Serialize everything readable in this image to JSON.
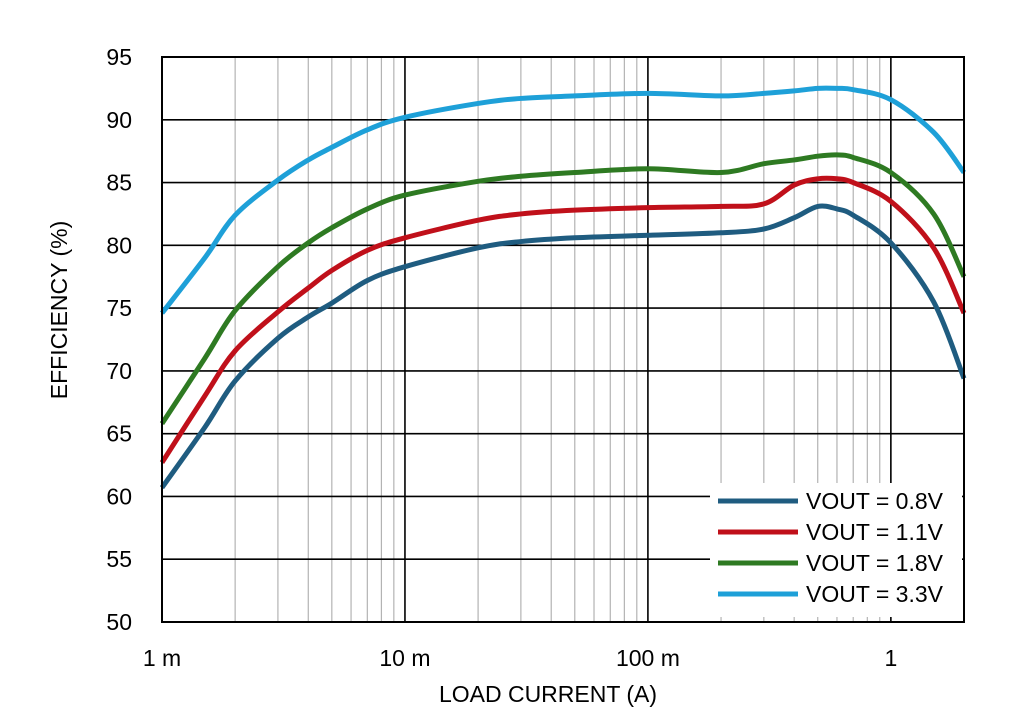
{
  "chart_data": {
    "type": "line",
    "xscale": "log",
    "xlabel": "LOAD CURRENT (A)",
    "ylabel": "EFFICIENCY (%)",
    "xlim": [
      0.001,
      2
    ],
    "ylim": [
      50,
      95
    ],
    "x_ticks": [
      {
        "value": 0.001,
        "label": "1 m"
      },
      {
        "value": 0.01,
        "label": "10 m"
      },
      {
        "value": 0.1,
        "label": "100 m"
      },
      {
        "value": 1,
        "label": "1"
      }
    ],
    "y_ticks": [
      50,
      55,
      60,
      65,
      70,
      75,
      80,
      85,
      90,
      95
    ],
    "grid": true,
    "legend_position": "bottom-right",
    "series": [
      {
        "name": "VOUT = 0.8V",
        "color": "#1F5C80",
        "points": [
          [
            0.001,
            60.7
          ],
          [
            0.0015,
            65.5
          ],
          [
            0.002,
            69.2
          ],
          [
            0.003,
            72.6
          ],
          [
            0.004,
            74.3
          ],
          [
            0.005,
            75.4
          ],
          [
            0.007,
            77.2
          ],
          [
            0.01,
            78.3
          ],
          [
            0.02,
            79.8
          ],
          [
            0.03,
            80.3
          ],
          [
            0.05,
            80.6
          ],
          [
            0.1,
            80.8
          ],
          [
            0.2,
            81.0
          ],
          [
            0.3,
            81.3
          ],
          [
            0.4,
            82.2
          ],
          [
            0.5,
            83.1
          ],
          [
            0.6,
            82.9
          ],
          [
            0.7,
            82.4
          ],
          [
            1.0,
            80.2
          ],
          [
            1.5,
            75.5
          ],
          [
            2.0,
            69.4
          ]
        ]
      },
      {
        "name": "VOUT = 1.1V",
        "color": "#C0101A",
        "points": [
          [
            0.001,
            62.7
          ],
          [
            0.0015,
            68.0
          ],
          [
            0.002,
            71.6
          ],
          [
            0.003,
            74.7
          ],
          [
            0.004,
            76.6
          ],
          [
            0.005,
            78.0
          ],
          [
            0.007,
            79.6
          ],
          [
            0.01,
            80.6
          ],
          [
            0.02,
            82.0
          ],
          [
            0.03,
            82.5
          ],
          [
            0.05,
            82.8
          ],
          [
            0.1,
            83.0
          ],
          [
            0.2,
            83.1
          ],
          [
            0.3,
            83.3
          ],
          [
            0.4,
            84.8
          ],
          [
            0.5,
            85.3
          ],
          [
            0.6,
            85.3
          ],
          [
            0.7,
            85.0
          ],
          [
            1.0,
            83.5
          ],
          [
            1.5,
            79.8
          ],
          [
            2.0,
            74.6
          ]
        ]
      },
      {
        "name": "VOUT = 1.8V",
        "color": "#2E7A22",
        "points": [
          [
            0.001,
            65.8
          ],
          [
            0.0015,
            71.0
          ],
          [
            0.002,
            74.8
          ],
          [
            0.003,
            78.3
          ],
          [
            0.004,
            80.2
          ],
          [
            0.005,
            81.4
          ],
          [
            0.007,
            82.9
          ],
          [
            0.01,
            84.0
          ],
          [
            0.02,
            85.1
          ],
          [
            0.03,
            85.5
          ],
          [
            0.05,
            85.8
          ],
          [
            0.1,
            86.1
          ],
          [
            0.2,
            85.8
          ],
          [
            0.3,
            86.5
          ],
          [
            0.4,
            86.8
          ],
          [
            0.5,
            87.1
          ],
          [
            0.6,
            87.2
          ],
          [
            0.7,
            87.0
          ],
          [
            1.0,
            85.8
          ],
          [
            1.5,
            82.5
          ],
          [
            2.0,
            77.5
          ]
        ]
      },
      {
        "name": "VOUT = 3.3V",
        "color": "#1EA0D8",
        "points": [
          [
            0.001,
            74.6
          ],
          [
            0.0015,
            79.0
          ],
          [
            0.002,
            82.4
          ],
          [
            0.003,
            85.2
          ],
          [
            0.004,
            86.8
          ],
          [
            0.005,
            87.8
          ],
          [
            0.007,
            89.2
          ],
          [
            0.01,
            90.2
          ],
          [
            0.02,
            91.3
          ],
          [
            0.03,
            91.7
          ],
          [
            0.05,
            91.9
          ],
          [
            0.1,
            92.1
          ],
          [
            0.2,
            91.9
          ],
          [
            0.3,
            92.1
          ],
          [
            0.4,
            92.3
          ],
          [
            0.5,
            92.5
          ],
          [
            0.6,
            92.5
          ],
          [
            0.7,
            92.4
          ],
          [
            1.0,
            91.6
          ],
          [
            1.5,
            89.0
          ],
          [
            2.0,
            85.8
          ]
        ]
      }
    ]
  }
}
